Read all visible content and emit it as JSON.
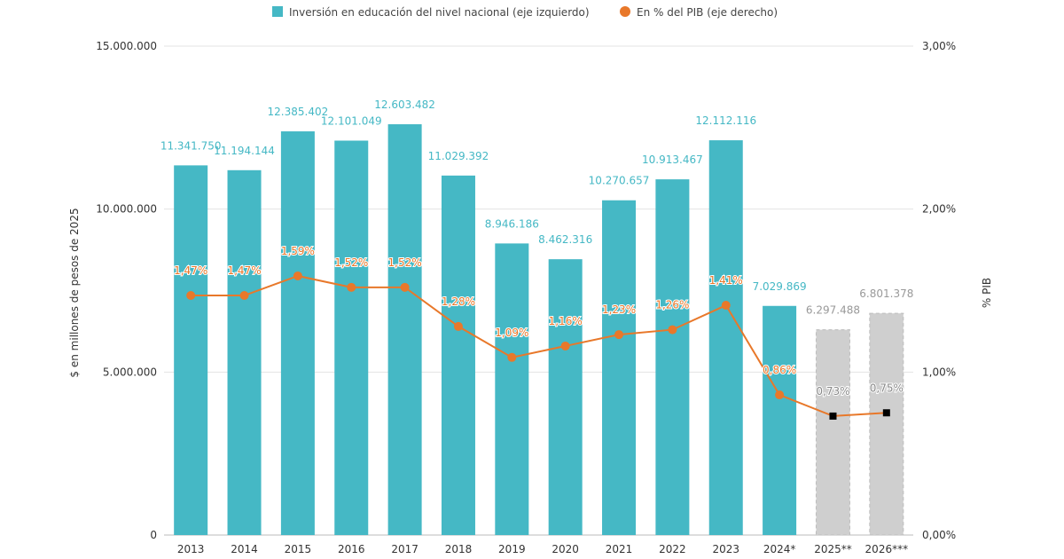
{
  "chart_data": {
    "type": "bar",
    "categories": [
      "2013",
      "2014",
      "2015",
      "2016",
      "2017",
      "2018",
      "2019",
      "2020",
      "2021",
      "2022",
      "2023",
      "2024*",
      "2025**",
      "2026***"
    ],
    "series": [
      {
        "name": "Inversión en educación del nivel nacional (eje izquierdo)",
        "type": "bar",
        "axis": "left",
        "values": [
          11341750,
          11194144,
          12385402,
          12101049,
          12603482,
          11029392,
          8946186,
          8462316,
          10270657,
          10913467,
          12112116,
          7029869,
          6297488,
          6801378
        ],
        "labels": [
          "11.341.750",
          "11.194.144",
          "12.385.402",
          "12.101.049",
          "12.603.482",
          "11.029.392",
          "8.946.186",
          "8.462.316",
          "10.270.657",
          "10.913.467",
          "12.112.116",
          "7.029.869",
          "6.297.488",
          "6.801.378"
        ]
      },
      {
        "name": "En % del PIB (eje derecho)",
        "type": "line",
        "axis": "right",
        "values": [
          1.47,
          1.47,
          1.59,
          1.52,
          1.52,
          1.28,
          1.09,
          1.16,
          1.23,
          1.26,
          1.41,
          0.86,
          0.73,
          0.75
        ],
        "labels": [
          "1,47%",
          "1,47%",
          "1,59%",
          "1,52%",
          "1,52%",
          "1,28%",
          "1,09%",
          "1,16%",
          "1,23%",
          "1,26%",
          "1,41%",
          "0,86%",
          "0,73%",
          "0,75%"
        ]
      }
    ],
    "projected_categories": [
      "2025**",
      "2026***"
    ],
    "ylabel": "$ en millones de pesos de 2025",
    "y2label": "% PIB",
    "ylim": [
      0,
      15000000
    ],
    "y2lim": [
      0,
      3
    ],
    "yticks": [
      "0",
      "5.000.000",
      "10.000.000",
      "15.000.000"
    ],
    "y2ticks": [
      "0,00%",
      "1,00%",
      "2,00%",
      "3,00%"
    ],
    "grid": true,
    "legend_position": "top",
    "colors": {
      "bar": "#45b8c5",
      "projected_bar": "#cfcfcf",
      "line": "#e8782a",
      "projected_marker": "#000000",
      "projected_label": "#999999"
    }
  }
}
